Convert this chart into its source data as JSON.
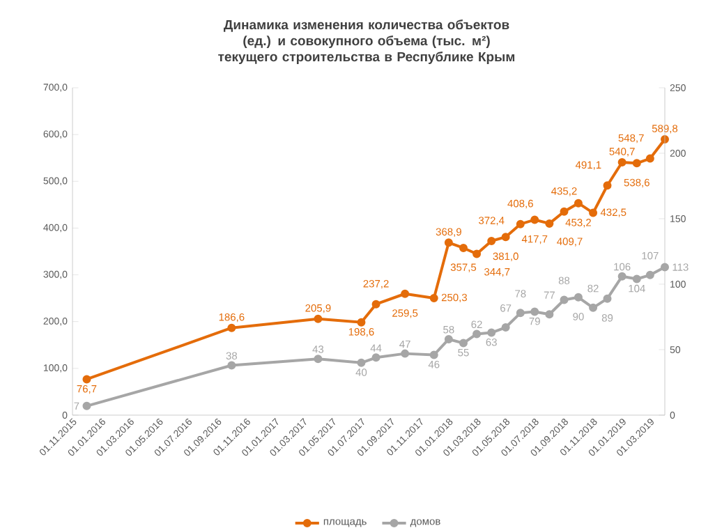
{
  "chart_data": {
    "type": "line",
    "title": "Динамика изменения количества объектов (ед.) и совокупного объема (тыс. м²) текущего строительства в Республике Крым",
    "x": [
      "2015-12",
      "2016-10",
      "2017-04",
      "2017-07",
      "2017-08",
      "2017-10",
      "2017-12",
      "2018-01",
      "2018-02",
      "2018-03",
      "2018-04",
      "2018-05",
      "2018-06",
      "2018-07",
      "2018-08",
      "2018-09",
      "2018-10",
      "2018-11",
      "2018-12",
      "2019-01",
      "2019-02",
      "2019-03",
      "2019-04"
    ],
    "series": [
      {
        "name": "площадь",
        "color": "#e46c0a",
        "values": [
          76.7,
          186.6,
          205.9,
          198.6,
          237.2,
          259.5,
          250.3,
          368.9,
          357.5,
          344.7,
          372.4,
          381.0,
          408.6,
          417.7,
          409.7,
          435.2,
          453.2,
          432.5,
          491.1,
          540.7,
          538.6,
          548.7,
          589.8
        ],
        "value_labels": [
          "76,7",
          "186,6",
          "205,9",
          "198,6",
          "237,2",
          "259,5",
          "250,3",
          "368,9",
          "357,5",
          "344,7",
          "372,4",
          "381,0",
          "408,6",
          "417,7",
          "409,7",
          "435,2",
          "453,2",
          "432,5",
          "491,1",
          "540,7",
          "538,6",
          "548,7",
          "589,8"
        ]
      },
      {
        "name": "домов",
        "color": "#a6a6a6",
        "axis": "y2",
        "values": [
          7,
          38,
          43,
          40,
          44,
          47,
          46,
          58,
          55,
          62,
          63,
          67,
          78,
          79,
          77,
          88,
          90,
          82,
          89,
          106,
          104,
          107,
          113
        ],
        "value_labels": [
          "7",
          "38",
          "43",
          "40",
          "44",
          "47",
          "46",
          "58",
          "55",
          "62",
          "63",
          "67",
          "78",
          "79",
          "77",
          "88",
          "90",
          "82",
          "89",
          "106",
          "104",
          "107",
          "113"
        ]
      }
    ],
    "xlim": [
      "2015-11-01",
      "2019-04-01"
    ],
    "xticks": [
      {
        "value": "2015-11-01",
        "label": "01.11.2015"
      },
      {
        "value": "2016-01-01",
        "label": "01.01.2016"
      },
      {
        "value": "2016-03-01",
        "label": "01.03.2016"
      },
      {
        "value": "2016-05-01",
        "label": "01.05.2016"
      },
      {
        "value": "2016-07-01",
        "label": "01.07.2016"
      },
      {
        "value": "2016-09-01",
        "label": "01.09.2016"
      },
      {
        "value": "2016-11-01",
        "label": "01.11.2016"
      },
      {
        "value": "2017-01-01",
        "label": "01.01.2017"
      },
      {
        "value": "2017-03-01",
        "label": "01.03.2017"
      },
      {
        "value": "2017-05-01",
        "label": "01.05.2017"
      },
      {
        "value": "2017-07-01",
        "label": "01.07.2017"
      },
      {
        "value": "2017-09-01",
        "label": "01.09.2017"
      },
      {
        "value": "2017-11-01",
        "label": "01.11.2017"
      },
      {
        "value": "2018-01-01",
        "label": "01.01.2018"
      },
      {
        "value": "2018-03-01",
        "label": "01.03.2018"
      },
      {
        "value": "2018-05-01",
        "label": "01.05.2018"
      },
      {
        "value": "2018-07-01",
        "label": "01.07.2018"
      },
      {
        "value": "2018-09-01",
        "label": "01.09.2018"
      },
      {
        "value": "2018-11-01",
        "label": "01.11.2018"
      },
      {
        "value": "2019-01-01",
        "label": "01.01.2019"
      },
      {
        "value": "2019-03-01",
        "label": "01.03.2019"
      }
    ],
    "ylim": [
      0,
      700
    ],
    "yticks": [
      0,
      {
        "value": 100,
        "label": "100,0"
      },
      {
        "value": 200,
        "label": "200,0"
      },
      {
        "value": 300,
        "label": "300,0"
      },
      {
        "value": 400,
        "label": "400,0"
      },
      {
        "value": 500,
        "label": "500,0"
      },
      {
        "value": 600,
        "label": "600,0"
      },
      {
        "value": 700,
        "label": "700,0"
      }
    ],
    "y2lim": [
      0,
      250
    ],
    "y2ticks": [
      0,
      50,
      100,
      150,
      200,
      250
    ],
    "legend": "bottom",
    "marker": "circle",
    "line_style": "solid"
  }
}
